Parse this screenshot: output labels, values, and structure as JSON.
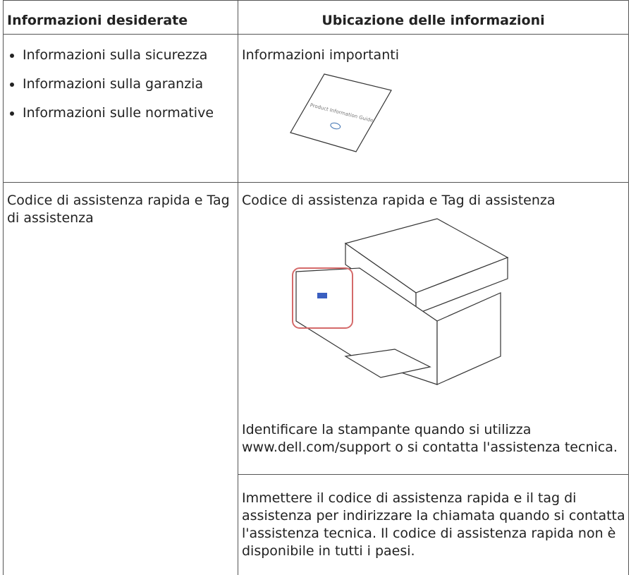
{
  "table": {
    "header": [
      "Informazioni desiderate",
      "Ubicazione delle informazioni"
    ],
    "rows": [
      {
        "left": {
          "bullets": [
            "Informazioni sulla sicurezza",
            "Informazioni sulla garanzia",
            "Informazioni sulle normative"
          ]
        },
        "right": {
          "title": "Informazioni importanti",
          "image_text": "Product Information Guide"
        }
      },
      {
        "left": {
          "text": "Codice di assistenza rapida e Tag di assistenza"
        },
        "right": {
          "title": "Codice di assistenza rapida e Tag di assistenza",
          "paragraphs": [
            "Identificare la stampante quando si utilizza www.dell.com/support o si contatta l'assistenza tecnica.",
            "Immettere il codice di assistenza rapida e il tag di assistenza per indirizzare la chiamata quando si contatta l'assistenza tecnica. Il codice di assistenza rapida non è disponibile in tutti i paesi."
          ]
        }
      }
    ]
  }
}
